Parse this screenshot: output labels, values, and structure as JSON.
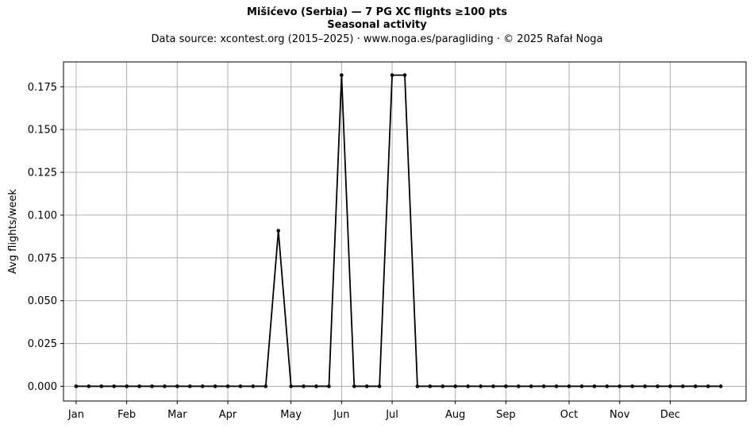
{
  "title_line1": "Mišićevo (Serbia)  —  7 PG XC flights ≥100 pts",
  "title_line2": "Seasonal activity",
  "title_line3": "Data source: xcontest.org (2015–2025)  ·  www.noga.es/paragliding  ·  © 2025 Rafał Noga",
  "chart_data": {
    "type": "line",
    "title": "Mišićevo (Serbia)  —  7 PG XC flights ≥100 pts",
    "subtitle": "Seasonal activity",
    "xlabel": "",
    "ylabel": "Avg flights/week",
    "x_unit": "week",
    "x_range": [
      0,
      54
    ],
    "ylim": [
      -0.0086,
      0.1895
    ],
    "grid": true,
    "line_color": "#000000",
    "grid_color": "#b0b0b0",
    "month_ticks": [
      {
        "label": "Jan",
        "week": 1
      },
      {
        "label": "Feb",
        "week": 5
      },
      {
        "label": "Mar",
        "week": 9
      },
      {
        "label": "Apr",
        "week": 13
      },
      {
        "label": "May",
        "week": 18
      },
      {
        "label": "Jun",
        "week": 22
      },
      {
        "label": "Jul",
        "week": 26
      },
      {
        "label": "Aug",
        "week": 31
      },
      {
        "label": "Sep",
        "week": 35
      },
      {
        "label": "Oct",
        "week": 40
      },
      {
        "label": "Nov",
        "week": 44
      },
      {
        "label": "Dec",
        "week": 48
      }
    ],
    "y_ticks": [
      {
        "value": 0,
        "label": "0.000"
      },
      {
        "value": 0.025,
        "label": "0.025"
      },
      {
        "value": 0.05,
        "label": "0.050"
      },
      {
        "value": 0.075,
        "label": "0.075"
      },
      {
        "value": 0.1,
        "label": "0.100"
      },
      {
        "value": 0.125,
        "label": "0.125"
      },
      {
        "value": 0.15,
        "label": "0.150"
      },
      {
        "value": 0.175,
        "label": "0.175"
      }
    ],
    "series": [
      {
        "x": [
          1,
          2,
          3,
          4,
          5,
          6,
          7,
          8,
          9,
          10,
          11,
          12,
          13,
          14,
          15,
          16,
          17,
          18,
          19,
          20,
          21,
          22,
          23,
          24,
          25,
          26,
          27,
          28,
          29,
          30,
          31,
          32,
          33,
          34,
          35,
          36,
          37,
          38,
          39,
          40,
          41,
          42,
          43,
          44,
          45,
          46,
          47,
          48,
          49,
          50,
          51,
          52
        ],
        "values": [
          0,
          0,
          0,
          0,
          0,
          0,
          0,
          0,
          0,
          0,
          0,
          0,
          0,
          0,
          0,
          0,
          0.0909,
          0,
          0,
          0,
          0,
          0.1818,
          0,
          0,
          0,
          0.1818,
          0.1818,
          0,
          0,
          0,
          0,
          0,
          0,
          0,
          0,
          0,
          0,
          0,
          0,
          0,
          0,
          0,
          0,
          0,
          0,
          0,
          0,
          0,
          0,
          0,
          0,
          0
        ]
      }
    ]
  }
}
